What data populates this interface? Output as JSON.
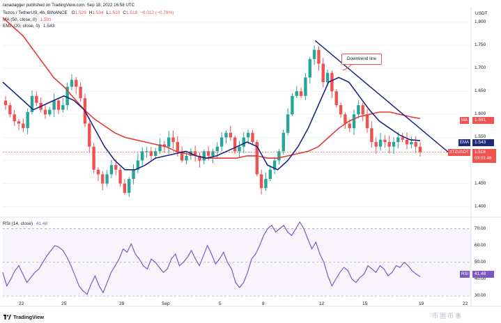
{
  "top_credit": "ranadagger published on TradingView.com, Sep 18, 2022 16:58 UTC",
  "header": {
    "symbol": "Tezos / TetherUS, 4h, BINANCE",
    "o_label": "O",
    "o": "1.529",
    "h_label": "H",
    "h": "1.534",
    "l_label": "L",
    "l": "1.510",
    "c_label": "C",
    "c": "1.518",
    "change": "−0.012 (−0.78%)",
    "ma_label": "MA (50, close, 0)",
    "ma_value": "1.591",
    "ema_label": "EMA (20, close, 0)",
    "ema_value": "1.543",
    "rsi_label": "RSI (14, close)",
    "rsi_value": "41.48"
  },
  "price_axis": {
    "currency": "USDT",
    "ticks": [
      "1.800",
      "1.750",
      "1.700",
      "1.650",
      "1.600",
      "1.550",
      "1.500",
      "1.450",
      "1.400"
    ],
    "tags": [
      {
        "name": "MA",
        "value": "1.591",
        "color": "#ef5350"
      },
      {
        "name": "EMA",
        "value": "1.543",
        "color": "#1e2a78"
      },
      {
        "name": "XTZUSDT",
        "value": "1.518",
        "sub": "03:01:48",
        "color": "#ef5350"
      }
    ]
  },
  "rsi_axis": {
    "ticks": [
      "70.00",
      "60.00",
      "50.00",
      "40.00",
      "30.00"
    ],
    "tag": {
      "name": "RSI",
      "value": "41.48",
      "color": "#7e57c2"
    }
  },
  "time_axis": [
    "22",
    "25",
    "29",
    "Sep",
    "5",
    "8",
    "12",
    "15",
    "19",
    "22"
  ],
  "annotation": "Downtrend line",
  "footer": {
    "brand": "TradingView",
    "watermark": "币圈币事"
  },
  "colors": {
    "up": "#26a69a",
    "down": "#ef5350",
    "ma": "#e53935",
    "ema": "#1a237e",
    "rsi": "#7e57c2",
    "trend": "#1a237e"
  },
  "chart_data": [
    {
      "type": "candlestick",
      "title": "Tezos / TetherUS, 4h, BINANCE",
      "series": [
        {
          "name": "XTZUSDT"
        },
        {
          "name": "MA (50, close, 0)"
        },
        {
          "name": "EMA (20, close, 0)"
        }
      ],
      "x_ticks": [
        "22",
        "25",
        "29",
        "Sep",
        "5",
        "8",
        "12",
        "15",
        "19",
        "22"
      ],
      "ylim": [
        1.38,
        1.83
      ],
      "last_close": 1.518,
      "ohlc": [
        {
          "o": 1.529,
          "h": 1.534,
          "l": 1.51,
          "c": 1.518
        }
      ],
      "close_path": [
        1.62,
        1.6,
        1.585,
        1.58,
        1.57,
        1.605,
        1.64,
        1.625,
        1.61,
        1.6,
        1.61,
        1.63,
        1.61,
        1.62,
        1.66,
        1.675,
        1.66,
        1.635,
        1.58,
        1.53,
        1.48,
        1.47,
        1.45,
        1.47,
        1.49,
        1.48,
        1.45,
        1.43,
        1.46,
        1.48,
        1.5,
        1.52,
        1.52,
        1.51,
        1.52,
        1.535,
        1.53,
        1.55,
        1.54,
        1.52,
        1.5,
        1.51,
        1.52,
        1.51,
        1.5,
        1.52,
        1.51,
        1.52,
        1.53,
        1.55,
        1.56,
        1.55,
        1.52,
        1.53,
        1.55,
        1.56,
        1.54,
        1.47,
        1.44,
        1.46,
        1.48,
        1.5,
        1.52,
        1.56,
        1.6,
        1.64,
        1.65,
        1.64,
        1.68,
        1.72,
        1.74,
        1.71,
        1.67,
        1.69,
        1.65,
        1.62,
        1.6,
        1.58,
        1.57,
        1.6,
        1.62,
        1.6,
        1.57,
        1.54,
        1.53,
        1.545,
        1.54,
        1.53,
        1.54,
        1.55,
        1.545,
        1.535,
        1.54,
        1.53,
        1.518
      ],
      "ma_path": [
        1.81,
        1.79,
        1.77,
        1.74,
        1.71,
        1.68,
        1.66,
        1.635,
        1.61,
        1.59,
        1.575,
        1.56,
        1.55,
        1.545,
        1.54,
        1.535,
        1.53,
        1.52,
        1.515,
        1.51,
        1.505,
        1.505,
        1.505,
        1.505,
        1.51,
        1.51,
        1.505,
        1.505,
        1.51,
        1.515,
        1.52,
        1.53,
        1.55,
        1.57,
        1.585,
        1.595,
        1.6,
        1.605,
        1.605,
        1.6,
        1.595,
        1.591
      ],
      "ema_path": [
        1.67,
        1.65,
        1.63,
        1.61,
        1.62,
        1.63,
        1.64,
        1.63,
        1.61,
        1.57,
        1.53,
        1.5,
        1.48,
        1.48,
        1.49,
        1.505,
        1.51,
        1.515,
        1.52,
        1.51,
        1.505,
        1.51,
        1.52,
        1.53,
        1.54,
        1.53,
        1.49,
        1.48,
        1.5,
        1.53,
        1.57,
        1.62,
        1.67,
        1.68,
        1.67,
        1.64,
        1.61,
        1.585,
        1.57,
        1.555,
        1.545,
        1.543
      ],
      "trendline": [
        {
          "x": 0.667,
          "y": 1.76
        },
        {
          "x": 0.955,
          "y": 1.515
        }
      ]
    },
    {
      "type": "line",
      "title": "RSI (14, close)",
      "series": [
        {
          "name": "RSI (14, close)"
        }
      ],
      "ylim": [
        28,
        76
      ],
      "ticks": [
        70,
        60,
        50,
        40,
        30
      ],
      "values": [
        44,
        36,
        40,
        45,
        48,
        43,
        38,
        41,
        44,
        46,
        50,
        54,
        57,
        60,
        59,
        57,
        53,
        48,
        42,
        36,
        33,
        31,
        37,
        42,
        36,
        32,
        38,
        44,
        48,
        52,
        58,
        56,
        61,
        55,
        52,
        48,
        46,
        52,
        50,
        47,
        44,
        46,
        52,
        55,
        48,
        50,
        53,
        57,
        52,
        48,
        54,
        60,
        55,
        49,
        52,
        56,
        50,
        46,
        38,
        35,
        38,
        44,
        52,
        55,
        60,
        66,
        70,
        72,
        68,
        70,
        72,
        68,
        66,
        70,
        74,
        70,
        64,
        58,
        62,
        55,
        50,
        42,
        36,
        40,
        44,
        47,
        45,
        40,
        38,
        41,
        43,
        48,
        46,
        44,
        48,
        46,
        42,
        44,
        48,
        47,
        50,
        48,
        45,
        43,
        41.48
      ]
    }
  ]
}
